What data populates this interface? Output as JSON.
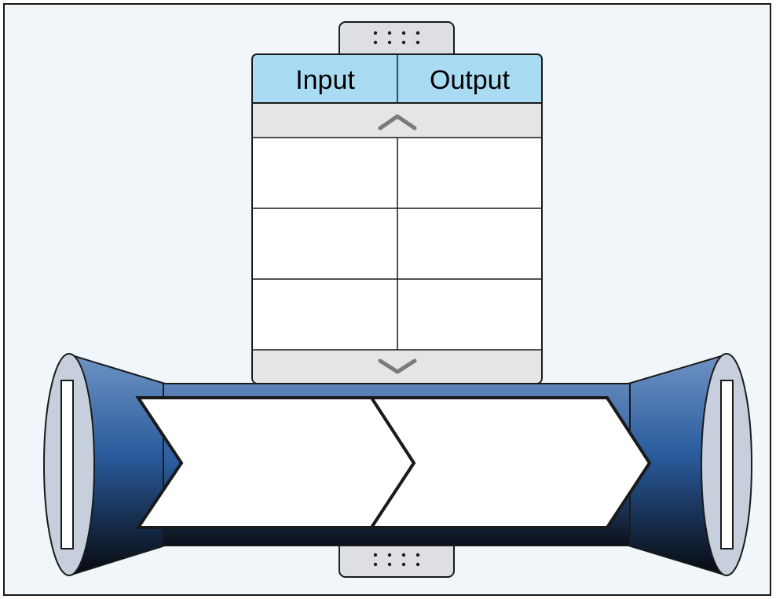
{
  "table": {
    "columns": [
      "Input",
      "Output"
    ],
    "rows": [
      [
        "",
        ""
      ],
      [
        "",
        ""
      ],
      [
        "",
        ""
      ]
    ],
    "scroll_up_icon": "chevron-up-icon",
    "scroll_down_icon": "chevron-down-icon"
  },
  "handles": {
    "icon": "drag-handle-icon"
  },
  "pipeline": {
    "steps": [
      "",
      ""
    ]
  },
  "colors": {
    "background": "#f0f6f9",
    "border": "#1a1a1a",
    "header_fill": "#a9dcf2",
    "scroll_bar_fill": "#e5e5e7",
    "handle_fill": "#dedfe3",
    "pipe_light": "#5c82b8",
    "pipe_mid": "#2a5c9e",
    "pipe_dark": "#0a0e16",
    "end_cap_fill": "#c6cfdb",
    "step_fill": "#ffffff"
  }
}
